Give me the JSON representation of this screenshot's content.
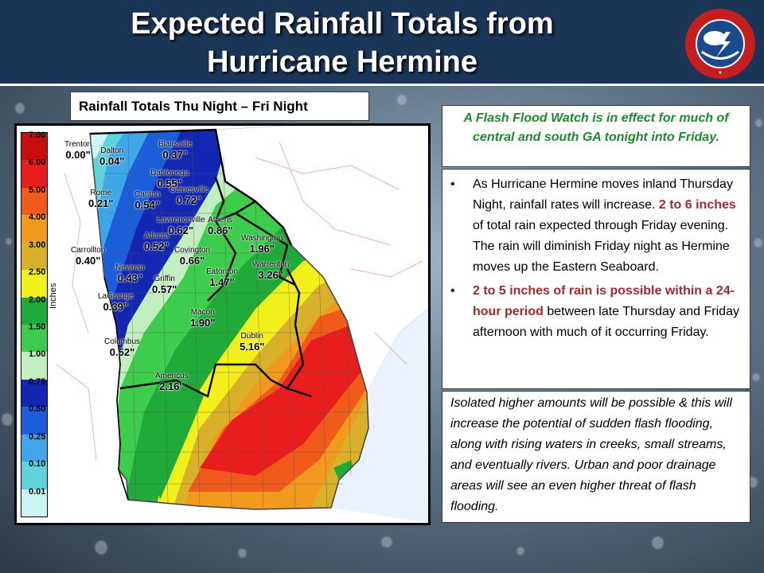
{
  "header": {
    "title_line1": "Expected Rainfall Totals from",
    "title_line2": "Hurricane Hermine",
    "logo_text": "NATIONAL WEATHER SERVICE"
  },
  "map": {
    "subtitle": "Rainfall Totals Thu Night – Fri Night",
    "legend": {
      "unit": "Inches",
      "levels": [
        {
          "label": "7.00",
          "color": "#c90d0d"
        },
        {
          "label": "6.00",
          "color": "#e81d1d"
        },
        {
          "label": "5.00",
          "color": "#f05a1a"
        },
        {
          "label": "4.00",
          "color": "#f29a1e"
        },
        {
          "label": "3.00",
          "color": "#d8b02a"
        },
        {
          "label": "2.50",
          "color": "#f2f01a"
        },
        {
          "label": "2.00",
          "color": "#1faa3a"
        },
        {
          "label": "1.50",
          "color": "#3dcc4b"
        },
        {
          "label": "1.00",
          "color": "#c2eec0"
        },
        {
          "label": "0.75",
          "color": "#1427b3"
        },
        {
          "label": "0.50",
          "color": "#1c5ed9"
        },
        {
          "label": "0.25",
          "color": "#3fa6e8"
        },
        {
          "label": "0.10",
          "color": "#5fd3dc"
        },
        {
          "label": "0.01",
          "color": "#ccf4f4"
        }
      ]
    },
    "cities": [
      {
        "name": "Trenton",
        "value": "0.00\""
      },
      {
        "name": "Dalton",
        "value": "0.04\""
      },
      {
        "name": "Blairsville",
        "value": "0.37\""
      },
      {
        "name": "Dahlonega",
        "value": "0.55\""
      },
      {
        "name": "Rome",
        "value": "0.21\""
      },
      {
        "name": "Canton",
        "value": "0.54\""
      },
      {
        "name": "Gainesville",
        "value": "0.72\""
      },
      {
        "name": "Lawrenceville",
        "value": "0.62\""
      },
      {
        "name": "Athens",
        "value": "0.86\""
      },
      {
        "name": "Atlanta",
        "value": "0.52\""
      },
      {
        "name": "Carrollton",
        "value": "0.40\""
      },
      {
        "name": "Covington",
        "value": "0.66\""
      },
      {
        "name": "Washington",
        "value": "1.96\""
      },
      {
        "name": "Newnan",
        "value": "0.43\""
      },
      {
        "name": "Eatonton",
        "value": "1.47\""
      },
      {
        "name": "Warrenton",
        "value": "3.26\""
      },
      {
        "name": "Griffin",
        "value": "0.57\""
      },
      {
        "name": "LaGrange",
        "value": "0.39\""
      },
      {
        "name": "Macon",
        "value": "1.90\""
      },
      {
        "name": "Columbus",
        "value": "0.52\""
      },
      {
        "name": "Dublin",
        "value": "5.16\""
      },
      {
        "name": "Americus",
        "value": "2.16\""
      }
    ]
  },
  "watch": {
    "text": "A Flash Flood Watch is in effect for much of central and south GA tonight into Friday."
  },
  "bullets": {
    "dot": "•",
    "b1_pre": "As Hurricane Hermine moves inland Thursday Night, rainfall rates will increase. ",
    "b1_hl": "2 to 6 inches",
    "b1_post": " of total rain expected through Friday evening. The rain will diminish Friday night as Hermine moves up the Eastern Seaboard.",
    "b2_hl": "2 to 5 inches of rain is possible within a 24-hour period",
    "b2_post": " between late Thursday and Friday afternoon with much of it occurring Friday."
  },
  "note": {
    "text": "Isolated higher amounts will be possible & this will increase the potential of sudden flash flooding, along with rising waters in creeks, small streams, and eventually rivers. Urban and poor drainage areas will see an even higher threat of flash flooding."
  }
}
